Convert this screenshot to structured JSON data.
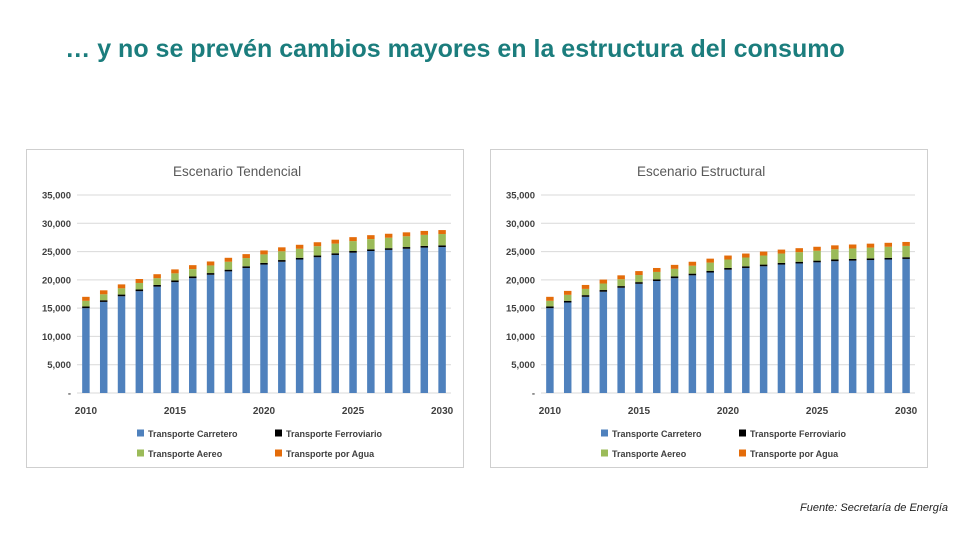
{
  "slide": {
    "title": "… y no se prevén cambios mayores en la estructura del consumo",
    "source": "Fuente: Secretaría de Energía"
  },
  "series_colors": {
    "Transporte Carretero": "#4f81bd",
    "Transporte Ferroviario": "#000000",
    "Transporte Aereo": "#9bbb59",
    "Transporte por Agua": "#e46c0a"
  },
  "chart_data": [
    {
      "type": "bar",
      "stacked": true,
      "title": "Escenario Tendencial",
      "categories": [
        "2010",
        "2011",
        "2012",
        "2013",
        "2014",
        "2015",
        "2016",
        "2017",
        "2018",
        "2019",
        "2020",
        "2021",
        "2022",
        "2023",
        "2024",
        "2025",
        "2026",
        "2027",
        "2028",
        "2029",
        "2030"
      ],
      "x_tick_labels": [
        "2010",
        "2015",
        "2020",
        "2025",
        "2030"
      ],
      "y_tick_labels": [
        "-",
        "5,000",
        "10,000",
        "15,000",
        "20,000",
        "25,000",
        "30,000",
        "35,000"
      ],
      "ylim": [
        0,
        35000
      ],
      "legend_position": "bottom",
      "series": [
        {
          "name": "Transporte Carretero",
          "values": [
            15000,
            16100,
            17100,
            18000,
            18800,
            19600,
            20300,
            20900,
            21500,
            22100,
            22700,
            23200,
            23600,
            24000,
            24400,
            24800,
            25100,
            25300,
            25500,
            25700,
            25800
          ]
        },
        {
          "name": "Transporte Ferroviario",
          "values": [
            300,
            300,
            300,
            300,
            300,
            300,
            300,
            300,
            300,
            300,
            300,
            300,
            300,
            300,
            300,
            300,
            300,
            300,
            300,
            300,
            300
          ]
        },
        {
          "name": "Transporte Aereo",
          "values": [
            1000,
            1050,
            1100,
            1150,
            1200,
            1250,
            1300,
            1350,
            1400,
            1450,
            1500,
            1550,
            1600,
            1650,
            1700,
            1750,
            1800,
            1850,
            1900,
            1950,
            2000
          ]
        },
        {
          "name": "Transporte por Agua",
          "values": [
            700,
            700,
            700,
            700,
            700,
            700,
            700,
            700,
            700,
            700,
            700,
            700,
            700,
            700,
            700,
            700,
            700,
            700,
            700,
            700,
            700
          ]
        }
      ]
    },
    {
      "type": "bar",
      "stacked": true,
      "title": "Escenario Estructural",
      "categories": [
        "2010",
        "2011",
        "2012",
        "2013",
        "2014",
        "2015",
        "2016",
        "2017",
        "2018",
        "2019",
        "2020",
        "2021",
        "2022",
        "2023",
        "2024",
        "2025",
        "2026",
        "2027",
        "2028",
        "2029",
        "2030"
      ],
      "x_tick_labels": [
        "2010",
        "2015",
        "2020",
        "2025",
        "2030"
      ],
      "y_tick_labels": [
        "-",
        "5,000",
        "10,000",
        "15,000",
        "20,000",
        "25,000",
        "30,000",
        "35,000"
      ],
      "ylim": [
        0,
        35000
      ],
      "legend_position": "bottom",
      "series": [
        {
          "name": "Transporte Carretero",
          "values": [
            15000,
            16000,
            17000,
            17900,
            18600,
            19300,
            19800,
            20300,
            20800,
            21300,
            21800,
            22100,
            22400,
            22700,
            22900,
            23100,
            23300,
            23400,
            23500,
            23600,
            23700
          ]
        },
        {
          "name": "Transporte Ferroviario",
          "values": [
            300,
            300,
            300,
            300,
            300,
            300,
            300,
            300,
            300,
            300,
            300,
            300,
            300,
            300,
            300,
            300,
            300,
            300,
            300,
            300,
            300
          ]
        },
        {
          "name": "Transporte Aereo",
          "values": [
            1000,
            1050,
            1100,
            1150,
            1200,
            1250,
            1300,
            1350,
            1400,
            1450,
            1500,
            1550,
            1600,
            1650,
            1700,
            1750,
            1800,
            1850,
            1900,
            1950,
            2000
          ]
        },
        {
          "name": "Transporte por Agua",
          "values": [
            700,
            700,
            700,
            700,
            700,
            700,
            700,
            700,
            700,
            700,
            700,
            700,
            700,
            700,
            700,
            700,
            700,
            700,
            700,
            700,
            700
          ]
        }
      ]
    }
  ]
}
